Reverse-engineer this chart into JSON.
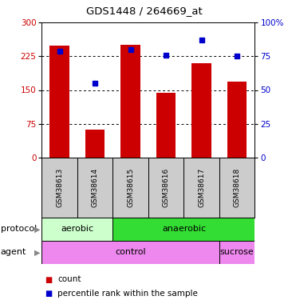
{
  "title": "GDS1448 / 264669_at",
  "samples": [
    "GSM38613",
    "GSM38614",
    "GSM38615",
    "GSM38616",
    "GSM38617",
    "GSM38618"
  ],
  "counts": [
    248,
    62,
    250,
    143,
    210,
    168
  ],
  "percentiles": [
    79,
    55,
    80,
    76,
    87,
    75
  ],
  "ylim_left": [
    0,
    300
  ],
  "ylim_right": [
    0,
    100
  ],
  "yticks_left": [
    0,
    75,
    150,
    225,
    300
  ],
  "yticks_right": [
    0,
    25,
    50,
    75,
    100
  ],
  "bar_color": "#cc0000",
  "dot_color": "#0000cc",
  "protocol_aerobic_color": "#ccffcc",
  "protocol_anaerobic_color": "#33dd33",
  "agent_color": "#ee88ee",
  "background_color": "#ffffff",
  "sample_bg_color": "#cccccc",
  "hgrid_values": [
    75,
    150,
    225
  ],
  "right_tick_labels": [
    "0",
    "25",
    "50",
    "75",
    "100%"
  ]
}
